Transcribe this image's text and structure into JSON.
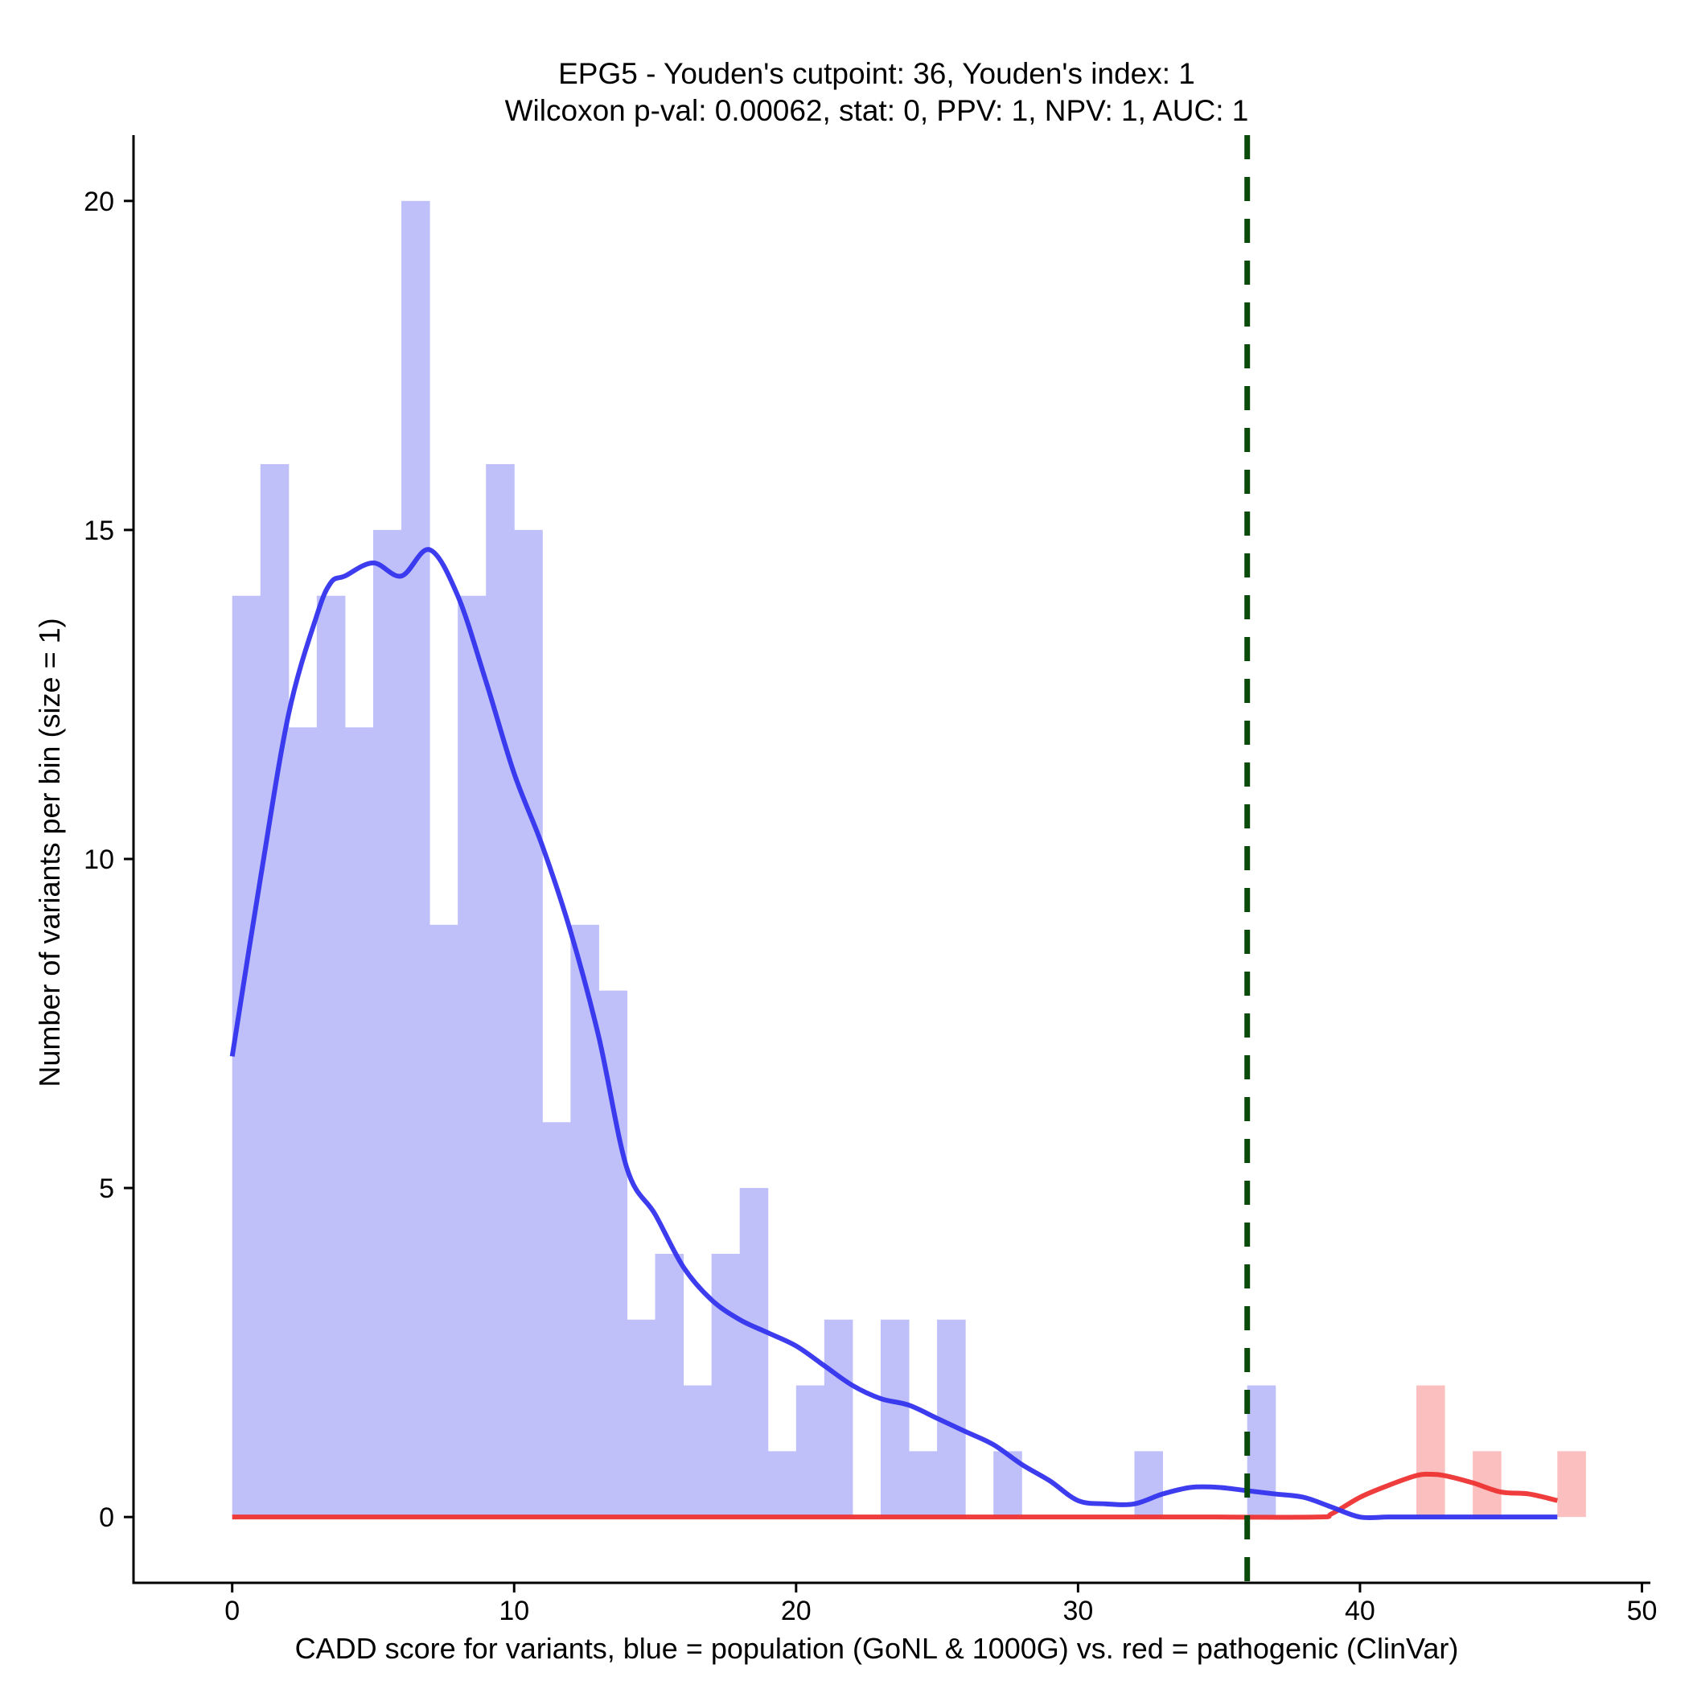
{
  "chart_data": {
    "type": "histogram",
    "title": "EPG5 - Youden's cutpoint: 36, Youden's index: 1",
    "subtitle": "Wilcoxon p-val: 0.00062, stat: 0, PPV: 1, NPV: 1, AUC: 1",
    "xlabel": "CADD score for variants, blue = population (GoNL & 1000G) vs. red = pathogenic (ClinVar)",
    "ylabel": "Number of variants per bin (size = 1)",
    "xlim": [
      -3.5,
      50.3
    ],
    "ylim": [
      -1,
      21
    ],
    "xticks": [
      0,
      10,
      20,
      30,
      40,
      50
    ],
    "yticks": [
      0,
      5,
      10,
      15,
      20
    ],
    "bin_width": 1,
    "cutpoint": 36,
    "series": [
      {
        "name": "population (GoNL & 1000G)",
        "color": "#bfbffa",
        "bins": [
          {
            "start": 0,
            "count": 14
          },
          {
            "start": 1,
            "count": 16
          },
          {
            "start": 2,
            "count": 12
          },
          {
            "start": 3,
            "count": 14
          },
          {
            "start": 4,
            "count": 12
          },
          {
            "start": 5,
            "count": 15
          },
          {
            "start": 6,
            "count": 20
          },
          {
            "start": 7,
            "count": 9
          },
          {
            "start": 8,
            "count": 14
          },
          {
            "start": 9,
            "count": 16
          },
          {
            "start": 10,
            "count": 15
          },
          {
            "start": 11,
            "count": 6
          },
          {
            "start": 12,
            "count": 9
          },
          {
            "start": 13,
            "count": 8
          },
          {
            "start": 14,
            "count": 3
          },
          {
            "start": 15,
            "count": 4
          },
          {
            "start": 16,
            "count": 2
          },
          {
            "start": 17,
            "count": 4
          },
          {
            "start": 18,
            "count": 5
          },
          {
            "start": 19,
            "count": 1
          },
          {
            "start": 20,
            "count": 2
          },
          {
            "start": 21,
            "count": 3
          },
          {
            "start": 23,
            "count": 3
          },
          {
            "start": 24,
            "count": 1
          },
          {
            "start": 25,
            "count": 3
          },
          {
            "start": 27,
            "count": 1
          },
          {
            "start": 32,
            "count": 1
          },
          {
            "start": 36,
            "count": 2
          }
        ]
      },
      {
        "name": "pathogenic (ClinVar)",
        "color": "#fbbfbf",
        "bins": [
          {
            "start": 42,
            "count": 2
          },
          {
            "start": 44,
            "count": 1
          },
          {
            "start": 47,
            "count": 1
          }
        ]
      }
    ],
    "density_curves": [
      {
        "name": "population density",
        "color": "#3333ee",
        "x": [
          0,
          1,
          2,
          3,
          3.5,
          4,
          5,
          6,
          7,
          8,
          9,
          10,
          11,
          12,
          13,
          14,
          15,
          16,
          17,
          18,
          19,
          20,
          21,
          22,
          23,
          24,
          25,
          26,
          27,
          28,
          29,
          30,
          31,
          32,
          33,
          34,
          35,
          36,
          37,
          38,
          39,
          40,
          41,
          42,
          43,
          44,
          45,
          46,
          47
        ],
        "y": [
          7,
          9.7,
          12.2,
          13.7,
          14.2,
          14.3,
          14.5,
          14.3,
          14.7,
          14,
          12.7,
          11.3,
          10.2,
          8.9,
          7.3,
          5.3,
          4.6,
          3.8,
          3.3,
          3,
          2.8,
          2.6,
          2.3,
          2,
          1.8,
          1.7,
          1.5,
          1.3,
          1.1,
          0.8,
          0.55,
          0.25,
          0.2,
          0.2,
          0.35,
          0.45,
          0.45,
          0.4,
          0.35,
          0.3,
          0.15,
          0,
          0,
          0,
          0,
          0,
          0,
          0,
          0
        ]
      },
      {
        "name": "pathogenic density",
        "color": "#ee3333",
        "x": [
          0,
          5,
          10,
          15,
          20,
          25,
          30,
          35,
          38.5,
          39,
          40,
          41,
          42,
          42.5,
          43,
          44,
          45,
          46,
          47
        ],
        "y": [
          0,
          0,
          0,
          0,
          0,
          0,
          0,
          0,
          0,
          0.05,
          0.3,
          0.48,
          0.63,
          0.65,
          0.63,
          0.52,
          0.38,
          0.35,
          0.25
        ]
      }
    ]
  }
}
